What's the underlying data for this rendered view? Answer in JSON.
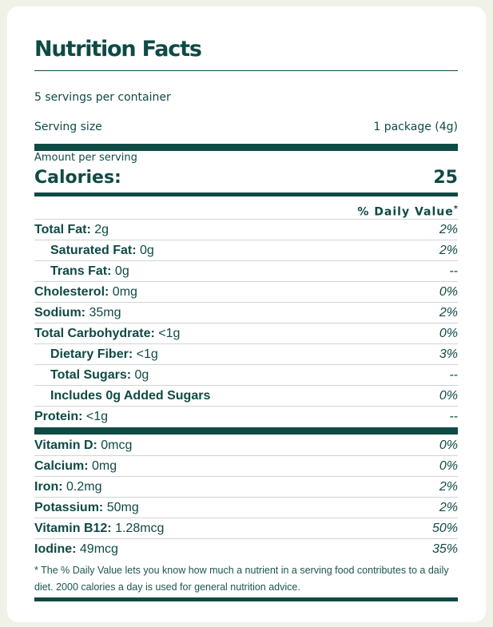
{
  "label": {
    "title": "Nutrition Facts",
    "servings_per_container": "5 servings per container",
    "serving_size_label": "Serving size",
    "serving_size_value": "1 package (4g)",
    "amount_per_serving": "Amount per serving",
    "calories_label": "Calories:",
    "calories_value": "25",
    "daily_value_header": "% Daily Value",
    "daily_value_mark": "*"
  },
  "macros": [
    {
      "name": "Total Fat:",
      "amount": "2g",
      "dv": "2%",
      "indent": false
    },
    {
      "name": "Saturated Fat:",
      "amount": "0g",
      "dv": "2%",
      "indent": true
    },
    {
      "name": "Trans Fat:",
      "amount": "0g",
      "dv": "--",
      "indent": true
    },
    {
      "name": "Cholesterol:",
      "amount": "0mg",
      "dv": "0%",
      "indent": false
    },
    {
      "name": "Sodium:",
      "amount": "35mg",
      "dv": "2%",
      "indent": false
    },
    {
      "name": "Total Carbohydrate:",
      "amount": "<1g",
      "dv": "0%",
      "indent": false
    },
    {
      "name": "Dietary Fiber:",
      "amount": "<1g",
      "dv": "3%",
      "indent": true
    },
    {
      "name": "Total Sugars:",
      "amount": "0g",
      "dv": "--",
      "indent": true
    },
    {
      "name": "Includes 0g Added Sugars",
      "amount": "",
      "dv": "0%",
      "indent": true
    },
    {
      "name": "Protein:",
      "amount": "<1g",
      "dv": "--",
      "indent": false
    }
  ],
  "micros": [
    {
      "name": "Vitamin D:",
      "amount": "0mcg",
      "dv": "0%"
    },
    {
      "name": "Calcium:",
      "amount": "0mg",
      "dv": "0%"
    },
    {
      "name": "Iron:",
      "amount": "0.2mg",
      "dv": "2%"
    },
    {
      "name": "Potassium:",
      "amount": "50mg",
      "dv": "2%"
    },
    {
      "name": "Vitamin B12:",
      "amount": "1.28mcg",
      "dv": "50%"
    },
    {
      "name": "Iodine:",
      "amount": "49mcg",
      "dv": "35%"
    }
  ],
  "footnote": "* The % Daily Value lets you know how much a nutrient in a serving food contributes to a daily diet. 2000 calories a day is used for general nutrition advice.",
  "colors": {
    "page_background": "#f1f2e7",
    "card_background": "#ffffff",
    "ink": "#0f4a45",
    "row_separator": "#cfd6d2"
  }
}
